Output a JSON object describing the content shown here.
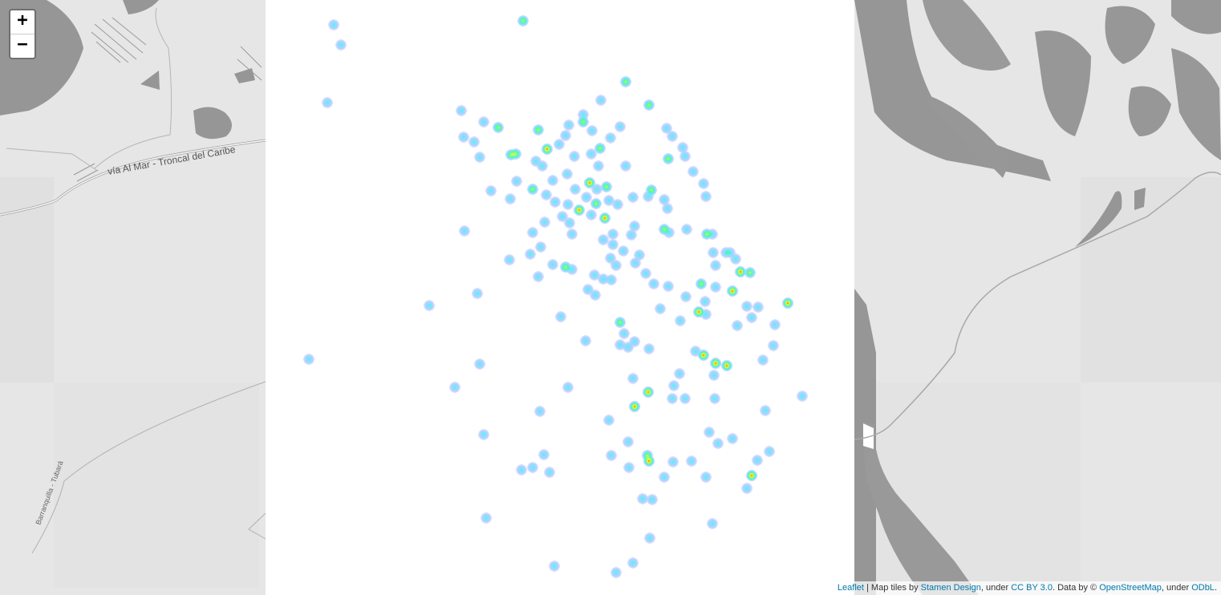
{
  "map": {
    "zoom_in_label": "+",
    "zoom_out_label": "−",
    "road_label_main": "vía Al Mar - Troncal del Caribe",
    "road_label_secondary": "Barranquilla - Tubará",
    "attribution": {
      "leaflet": "Leaflet",
      "sep1": " | Map tiles by ",
      "stamen": "Stamen Design",
      "sep2": ", under ",
      "ccby": "CC BY 3.0",
      "sep3": ". Data by © ",
      "osm": "OpenStreetMap",
      "sep4": ", under ",
      "odbl": "ODbL",
      "end": "."
    }
  },
  "heatmap": {
    "type": "heatmap",
    "color_ramp": [
      "#4455ff",
      "#40e0ff",
      "#60ff90",
      "#ffff30",
      "#ff3000"
    ],
    "point_intensity_note": "",
    "points": [
      [
        416,
        31,
        1
      ],
      [
        425,
        56,
        1
      ],
      [
        652,
        26,
        2
      ],
      [
        408,
        128,
        1
      ],
      [
        780,
        102,
        2
      ],
      [
        749,
        125,
        1
      ],
      [
        809,
        131,
        2
      ],
      [
        575,
        138,
        1
      ],
      [
        603,
        152,
        1
      ],
      [
        621,
        159,
        2
      ],
      [
        671,
        162,
        2
      ],
      [
        709,
        156,
        1
      ],
      [
        727,
        143,
        1
      ],
      [
        727,
        152,
        2
      ],
      [
        738,
        163,
        1
      ],
      [
        773,
        158,
        1
      ],
      [
        831,
        160,
        1
      ],
      [
        838,
        170,
        1
      ],
      [
        578,
        171,
        1
      ],
      [
        591,
        177,
        1
      ],
      [
        705,
        169,
        1
      ],
      [
        761,
        172,
        1
      ],
      [
        682,
        186,
        3
      ],
      [
        697,
        180,
        1
      ],
      [
        637,
        193,
        2
      ],
      [
        643,
        192,
        2
      ],
      [
        668,
        201,
        1
      ],
      [
        676,
        207,
        1
      ],
      [
        716,
        195,
        1
      ],
      [
        737,
        192,
        1
      ],
      [
        748,
        185,
        2
      ],
      [
        851,
        184,
        1
      ],
      [
        854,
        195,
        1
      ],
      [
        598,
        196,
        1
      ],
      [
        833,
        198,
        2
      ],
      [
        746,
        207,
        1
      ],
      [
        780,
        207,
        1
      ],
      [
        864,
        214,
        1
      ],
      [
        707,
        217,
        1
      ],
      [
        689,
        225,
        1
      ],
      [
        644,
        226,
        1
      ],
      [
        735,
        228,
        3
      ],
      [
        756,
        233,
        2
      ],
      [
        877,
        229,
        1
      ],
      [
        612,
        238,
        1
      ],
      [
        664,
        236,
        2
      ],
      [
        681,
        243,
        1
      ],
      [
        717,
        236,
        1
      ],
      [
        731,
        246,
        1
      ],
      [
        744,
        236,
        1
      ],
      [
        743,
        254,
        2
      ],
      [
        812,
        237,
        2
      ],
      [
        789,
        246,
        1
      ],
      [
        808,
        245,
        1
      ],
      [
        636,
        248,
        1
      ],
      [
        692,
        252,
        1
      ],
      [
        708,
        255,
        1
      ],
      [
        722,
        262,
        3
      ],
      [
        759,
        250,
        1
      ],
      [
        770,
        255,
        1
      ],
      [
        828,
        249,
        1
      ],
      [
        832,
        260,
        1
      ],
      [
        880,
        245,
        1
      ],
      [
        701,
        270,
        1
      ],
      [
        710,
        278,
        1
      ],
      [
        754,
        272,
        4
      ],
      [
        737,
        268,
        1
      ],
      [
        679,
        277,
        1
      ],
      [
        791,
        282,
        1
      ],
      [
        579,
        288,
        1
      ],
      [
        664,
        290,
        1
      ],
      [
        713,
        292,
        1
      ],
      [
        752,
        299,
        1
      ],
      [
        764,
        292,
        1
      ],
      [
        787,
        293,
        1
      ],
      [
        828,
        286,
        2
      ],
      [
        856,
        286,
        1
      ],
      [
        881,
        292,
        2
      ],
      [
        888,
        292,
        1
      ],
      [
        834,
        290,
        1
      ],
      [
        674,
        308,
        1
      ],
      [
        764,
        305,
        1
      ],
      [
        777,
        313,
        1
      ],
      [
        661,
        317,
        1
      ],
      [
        635,
        324,
        1
      ],
      [
        797,
        318,
        1
      ],
      [
        889,
        315,
        1
      ],
      [
        910,
        315,
        1
      ],
      [
        905,
        315,
        1
      ],
      [
        917,
        323,
        1
      ],
      [
        689,
        330,
        1
      ],
      [
        705,
        333,
        2
      ],
      [
        713,
        336,
        1
      ],
      [
        761,
        322,
        1
      ],
      [
        768,
        331,
        1
      ],
      [
        792,
        328,
        1
      ],
      [
        892,
        331,
        1
      ],
      [
        923,
        339,
        3
      ],
      [
        935,
        340,
        2
      ],
      [
        671,
        345,
        1
      ],
      [
        741,
        343,
        1
      ],
      [
        752,
        348,
        1
      ],
      [
        762,
        349,
        1
      ],
      [
        805,
        341,
        1
      ],
      [
        815,
        354,
        1
      ],
      [
        833,
        357,
        1
      ],
      [
        874,
        354,
        2
      ],
      [
        892,
        358,
        1
      ],
      [
        913,
        363,
        3
      ],
      [
        595,
        366,
        1
      ],
      [
        733,
        361,
        1
      ],
      [
        742,
        368,
        1
      ],
      [
        855,
        370,
        1
      ],
      [
        879,
        376,
        1
      ],
      [
        931,
        382,
        1
      ],
      [
        945,
        383,
        1
      ],
      [
        982,
        378,
        3
      ],
      [
        535,
        381,
        1
      ],
      [
        823,
        385,
        1
      ],
      [
        871,
        389,
        3
      ],
      [
        880,
        392,
        1
      ],
      [
        699,
        395,
        1
      ],
      [
        848,
        400,
        1
      ],
      [
        937,
        396,
        1
      ],
      [
        773,
        402,
        2
      ],
      [
        919,
        406,
        1
      ],
      [
        966,
        405,
        1
      ],
      [
        778,
        416,
        1
      ],
      [
        730,
        425,
        1
      ],
      [
        773,
        430,
        1
      ],
      [
        783,
        433,
        1
      ],
      [
        791,
        426,
        1
      ],
      [
        809,
        435,
        1
      ],
      [
        964,
        431,
        1
      ],
      [
        867,
        438,
        1
      ],
      [
        877,
        443,
        3
      ],
      [
        892,
        453,
        3
      ],
      [
        906,
        456,
        3
      ],
      [
        951,
        449,
        1
      ],
      [
        385,
        448,
        1
      ],
      [
        598,
        454,
        1
      ],
      [
        890,
        468,
        1
      ],
      [
        847,
        466,
        1
      ],
      [
        789,
        472,
        1
      ],
      [
        840,
        481,
        1
      ],
      [
        567,
        483,
        1
      ],
      [
        708,
        483,
        1
      ],
      [
        808,
        489,
        4
      ],
      [
        838,
        497,
        1
      ],
      [
        854,
        497,
        1
      ],
      [
        891,
        497,
        1
      ],
      [
        1000,
        494,
        1
      ],
      [
        791,
        507,
        3
      ],
      [
        954,
        512,
        1
      ],
      [
        673,
        513,
        1
      ],
      [
        759,
        524,
        1
      ],
      [
        603,
        542,
        1
      ],
      [
        884,
        539,
        1
      ],
      [
        913,
        547,
        1
      ],
      [
        895,
        553,
        1
      ],
      [
        783,
        551,
        1
      ],
      [
        807,
        568,
        2
      ],
      [
        809,
        575,
        3
      ],
      [
        959,
        563,
        1
      ],
      [
        678,
        567,
        1
      ],
      [
        762,
        568,
        1
      ],
      [
        839,
        576,
        1
      ],
      [
        862,
        575,
        1
      ],
      [
        944,
        574,
        1
      ],
      [
        650,
        586,
        1
      ],
      [
        664,
        583,
        1
      ],
      [
        685,
        589,
        1
      ],
      [
        784,
        583,
        1
      ],
      [
        828,
        595,
        1
      ],
      [
        880,
        595,
        1
      ],
      [
        937,
        593,
        3
      ],
      [
        931,
        609,
        1
      ],
      [
        801,
        622,
        1
      ],
      [
        813,
        623,
        1
      ],
      [
        606,
        646,
        1
      ],
      [
        888,
        653,
        1
      ],
      [
        810,
        671,
        1
      ],
      [
        691,
        706,
        1
      ],
      [
        789,
        702,
        1
      ],
      [
        768,
        714,
        1
      ]
    ]
  }
}
